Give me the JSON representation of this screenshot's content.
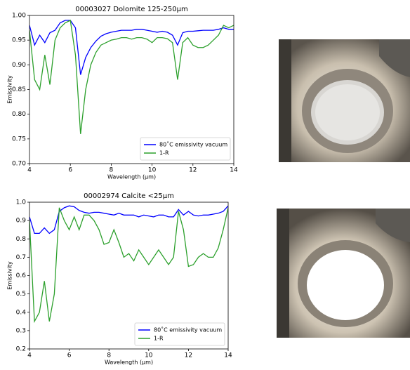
{
  "chart_data": [
    {
      "type": "line",
      "title": "00003027 Dolomite 125-250μm",
      "xlabel": "Wavelength (μm)",
      "ylabel": "Emissivity",
      "x": [
        4,
        4.25,
        4.5,
        4.75,
        5,
        5.25,
        5.5,
        5.75,
        6,
        6.25,
        6.5,
        6.75,
        7,
        7.25,
        7.5,
        7.75,
        8,
        8.25,
        8.5,
        8.75,
        9,
        9.25,
        9.5,
        9.75,
        10,
        10.25,
        10.5,
        10.75,
        11,
        11.25,
        11.5,
        11.75,
        12,
        12.25,
        12.5,
        12.75,
        13,
        13.25,
        13.5,
        13.75,
        14
      ],
      "series": [
        {
          "name": "80˚C emissivity vacuum",
          "color": "#0000ff",
          "values": [
            0.98,
            0.94,
            0.96,
            0.945,
            0.965,
            0.97,
            0.985,
            0.99,
            0.99,
            0.975,
            0.88,
            0.915,
            0.935,
            0.948,
            0.958,
            0.963,
            0.966,
            0.968,
            0.97,
            0.97,
            0.97,
            0.972,
            0.972,
            0.97,
            0.968,
            0.966,
            0.968,
            0.966,
            0.96,
            0.94,
            0.965,
            0.968,
            0.968,
            0.969,
            0.97,
            0.97,
            0.97,
            0.972,
            0.975,
            0.972,
            0.972
          ]
        },
        {
          "name": "1-R",
          "color": "#2ca02c",
          "values": [
            0.97,
            0.87,
            0.85,
            0.92,
            0.86,
            0.95,
            0.975,
            0.985,
            0.99,
            0.92,
            0.76,
            0.85,
            0.9,
            0.925,
            0.94,
            0.945,
            0.95,
            0.952,
            0.955,
            0.955,
            0.952,
            0.955,
            0.955,
            0.952,
            0.945,
            0.955,
            0.955,
            0.953,
            0.945,
            0.87,
            0.945,
            0.955,
            0.94,
            0.935,
            0.935,
            0.94,
            0.95,
            0.96,
            0.98,
            0.975,
            0.98
          ]
        }
      ],
      "xlim": [
        4,
        14
      ],
      "xticks": [
        4,
        6,
        8,
        10,
        12,
        14
      ],
      "ylim": [
        0.7,
        1.0
      ],
      "yticks": [
        {
          "value": 0.7,
          "label": "0.70"
        },
        0.75,
        {
          "value": 0.8,
          "label": "0.80"
        },
        0.85,
        {
          "value": 0.9,
          "label": "0.90"
        },
        0.95,
        {
          "value": 1.0,
          "label": "1.00"
        }
      ],
      "legend": "lower right"
    },
    {
      "type": "line",
      "title": "00002974 Calcite <25μm",
      "xlabel": "Wavelength (μm)",
      "ylabel": "Emissivity",
      "x": [
        4,
        4.25,
        4.5,
        4.75,
        5,
        5.25,
        5.5,
        5.75,
        6,
        6.25,
        6.5,
        6.75,
        7,
        7.25,
        7.5,
        7.75,
        8,
        8.25,
        8.5,
        8.75,
        9,
        9.25,
        9.5,
        9.75,
        10,
        10.25,
        10.5,
        10.75,
        11,
        11.25,
        11.5,
        11.75,
        12,
        12.25,
        12.5,
        12.75,
        13,
        13.25,
        13.5,
        13.75,
        14
      ],
      "series": [
        {
          "name": "80˚C emissivity vacuum",
          "color": "#0000ff",
          "values": [
            0.92,
            0.83,
            0.83,
            0.86,
            0.83,
            0.85,
            0.95,
            0.97,
            0.98,
            0.975,
            0.955,
            0.945,
            0.94,
            0.945,
            0.945,
            0.94,
            0.935,
            0.93,
            0.94,
            0.93,
            0.93,
            0.93,
            0.92,
            0.93,
            0.925,
            0.92,
            0.93,
            0.93,
            0.92,
            0.92,
            0.96,
            0.93,
            0.95,
            0.93,
            0.925,
            0.93,
            0.93,
            0.935,
            0.94,
            0.95,
            0.98
          ]
        },
        {
          "name": "1-R",
          "color": "#2ca02c",
          "values": [
            0.9,
            0.35,
            0.4,
            0.57,
            0.35,
            0.5,
            0.97,
            0.9,
            0.85,
            0.92,
            0.85,
            0.93,
            0.93,
            0.9,
            0.85,
            0.77,
            0.78,
            0.85,
            0.78,
            0.7,
            0.72,
            0.68,
            0.74,
            0.7,
            0.66,
            0.7,
            0.74,
            0.7,
            0.66,
            0.7,
            0.95,
            0.85,
            0.65,
            0.66,
            0.7,
            0.72,
            0.7,
            0.7,
            0.75,
            0.85,
            0.97
          ]
        }
      ],
      "xlim": [
        4,
        14
      ],
      "xticks": [
        4,
        6,
        8,
        10,
        12,
        14
      ],
      "ylim": [
        0.2,
        1.0
      ],
      "yticks": [
        0.2,
        0.3,
        0.4,
        0.5,
        0.6,
        0.7,
        0.8,
        0.9,
        {
          "value": 1.0,
          "label": "1.0"
        }
      ],
      "legend": "lower right"
    }
  ]
}
